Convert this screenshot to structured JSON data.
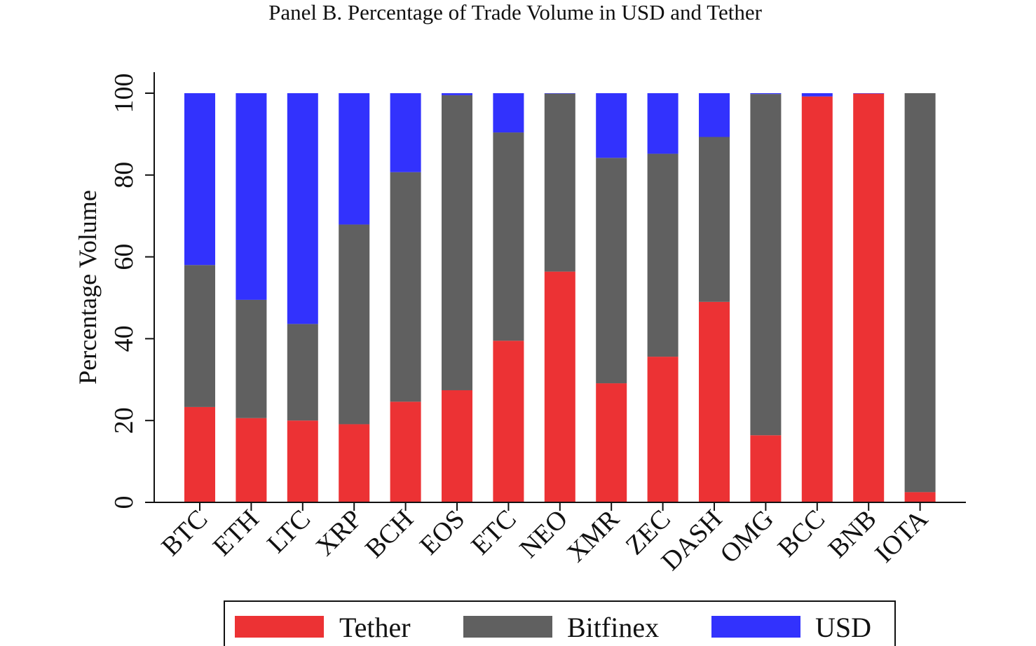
{
  "chart_data": {
    "type": "bar",
    "stacked": true,
    "title": "Panel B. Percentage of Trade Volume in USD and Tether",
    "xlabel": "",
    "ylabel": "Percentage Volume",
    "ylim": [
      0,
      100
    ],
    "yticks": [
      0,
      20,
      40,
      60,
      80,
      100
    ],
    "ytick_labels": [
      "0",
      "20",
      "40",
      "60",
      "80",
      "100"
    ],
    "categories": [
      "BTC",
      "ETH",
      "LTC",
      "XRP",
      "BCH",
      "EOS",
      "ETC",
      "NEO",
      "XMR",
      "ZEC",
      "DASH",
      "OMG",
      "BCC",
      "BNB",
      "IOTA"
    ],
    "series": [
      {
        "name": "Tether",
        "color": "#ec3234",
        "values": [
          23.3,
          20.6,
          20.0,
          19.1,
          24.6,
          27.4,
          39.5,
          56.4,
          29.1,
          35.6,
          49.0,
          16.4,
          99.2,
          99.9,
          2.5
        ]
      },
      {
        "name": "Bitfinex",
        "color": "#606060",
        "values": [
          34.7,
          28.9,
          23.6,
          48.8,
          56.1,
          72.1,
          50.9,
          43.5,
          55.1,
          49.6,
          40.3,
          83.4,
          0.0,
          0.0,
          97.5
        ]
      },
      {
        "name": "USD",
        "color": "#3232fd",
        "values": [
          42.0,
          50.5,
          56.4,
          32.1,
          19.3,
          0.5,
          9.6,
          0.1,
          15.8,
          14.8,
          10.7,
          0.2,
          0.8,
          0.1,
          0.0
        ]
      }
    ],
    "legend": {
      "position": "bottom",
      "entries": [
        "Tether",
        "Bitfinex",
        "USD"
      ]
    },
    "grid": false
  }
}
